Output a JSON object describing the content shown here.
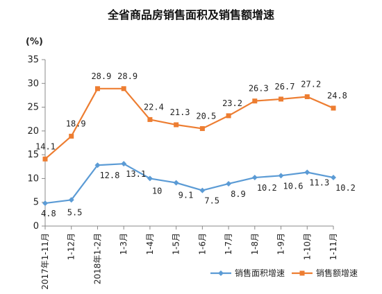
{
  "chart_data": {
    "type": "line",
    "title": "全省商品房销售面积及销售额增速",
    "ylabel": "(%)",
    "ylim": [
      0,
      35
    ],
    "yticks": [
      0,
      5,
      10,
      15,
      20,
      25,
      30,
      35
    ],
    "grid": false,
    "legend_position": "bottom-right",
    "categories": [
      "2017年1-11月",
      "1-12月",
      "2018年1-2月",
      "1-3月",
      "1-4月",
      "1-5月",
      "1-6月",
      "1-7月",
      "1-8月",
      "1-9月",
      "1-10月",
      "1-11月"
    ],
    "series": [
      {
        "name": "销售面积增速",
        "color": "#5b9bd5",
        "marker": "diamond",
        "values": [
          4.8,
          5.5,
          12.8,
          13.1,
          10,
          9.1,
          7.5,
          8.9,
          10.2,
          10.6,
          11.3,
          10.2
        ],
        "labels": [
          "4.8",
          "5.5",
          "12.8",
          "13.1",
          "10",
          "9.1",
          "7.5",
          "8.9",
          "10.2",
          "10.6",
          "11.3",
          "10.2"
        ]
      },
      {
        "name": "销售额增速",
        "color": "#ed7d31",
        "marker": "square",
        "values": [
          14.1,
          18.9,
          28.9,
          28.9,
          22.4,
          21.3,
          20.5,
          23.2,
          26.3,
          26.7,
          27.2,
          24.8
        ],
        "labels": [
          "14.1",
          "18.9",
          "28.9",
          "28.9",
          "22.4",
          "21.3",
          "20.5",
          "23.2",
          "26.3",
          "26.7",
          "27.2",
          "24.8"
        ]
      }
    ]
  }
}
